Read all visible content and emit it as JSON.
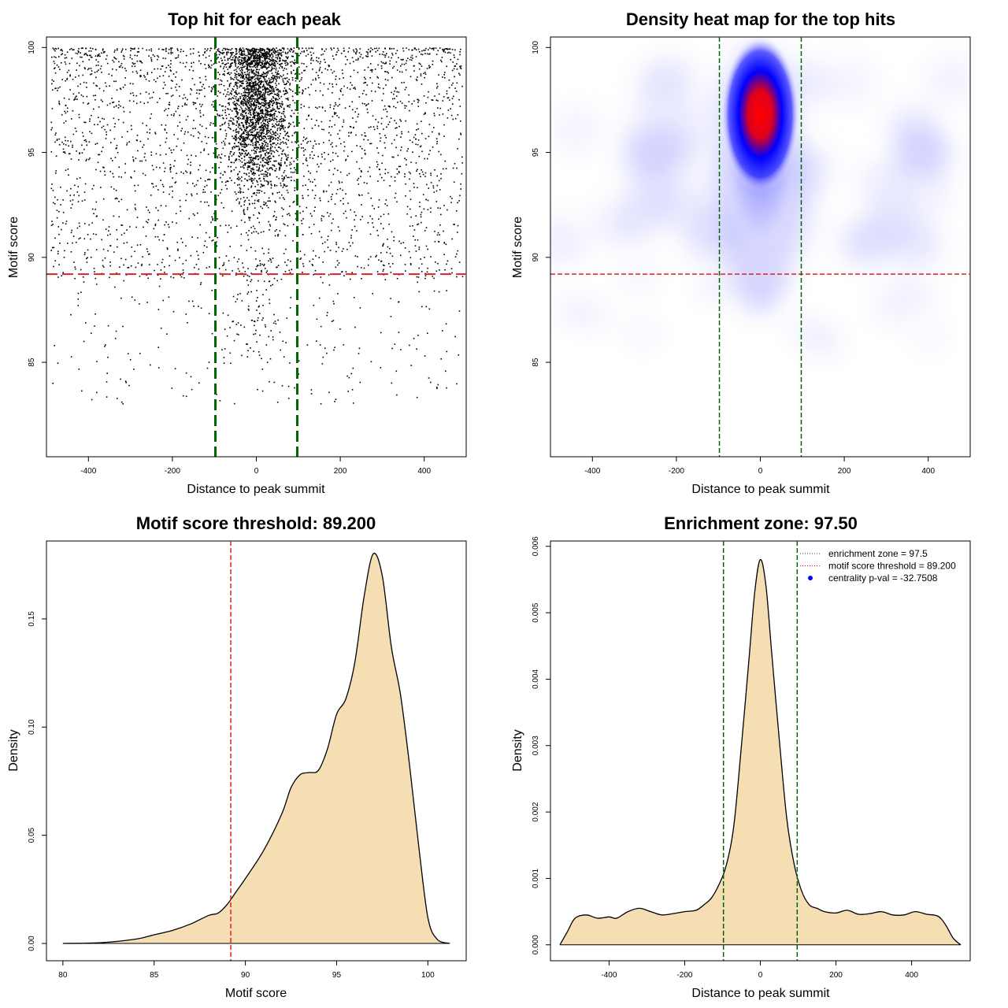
{
  "chart_data": [
    {
      "type": "scatter",
      "title": "Top hit for each peak",
      "xlabel": "Distance to peak summit",
      "ylabel": "Motif score",
      "xlim": [
        -500,
        500
      ],
      "ylim": [
        80.5,
        100.5
      ],
      "xticks": [
        -400,
        -200,
        0,
        200,
        400
      ],
      "yticks": [
        85,
        90,
        95,
        100
      ],
      "hlines": [
        89.2
      ],
      "vlines": [
        -97.5,
        97.5
      ],
      "points_summary": {
        "background": "points spread roughly uniformly over x in [-490, 490], mostly y 90-100, sparser 83-90",
        "central_cluster": "dense cluster centred at x=0 (sd about 35), y about 90-100, peak near 97"
      },
      "colors": {
        "points": "#000000",
        "threshold": "#dd2222",
        "zone": "#006600"
      }
    },
    {
      "type": "heatmap",
      "title": "Density heat map for the top hits",
      "xlabel": "Distance to peak summit",
      "ylabel": "Motif score",
      "xlim": [
        -500,
        500
      ],
      "ylim": [
        80.5,
        100.5
      ],
      "xticks": [
        -400,
        -200,
        0,
        200,
        400
      ],
      "yticks": [
        85,
        90,
        95,
        100
      ],
      "hlines": [
        89.2
      ],
      "vlines": [
        -97.5,
        97.5
      ],
      "hotspot": {
        "x": 0,
        "y": 97.2
      },
      "colors": {
        "low": "#ffffff",
        "mid": "#0000ff",
        "high": "#ff0000"
      }
    },
    {
      "type": "area",
      "title": "Motif score threshold: 89.200",
      "xlabel": "Motif score",
      "ylabel": "Density",
      "xlim": [
        79.1,
        102.1
      ],
      "ylim": [
        -0.008,
        0.186
      ],
      "xticks": [
        80,
        85,
        90,
        95,
        100
      ],
      "yticks": [
        0.0,
        0.05,
        0.1,
        0.15
      ],
      "ytick_labels": [
        "0.00",
        "0.05",
        "0.10",
        "0.15"
      ],
      "vlines": [
        89.2
      ],
      "x": [
        80,
        82,
        84,
        85,
        86,
        87,
        88,
        88.5,
        89,
        89.5,
        90,
        91,
        92,
        92.5,
        93,
        93.5,
        94,
        94.5,
        95,
        95.5,
        96,
        96.5,
        97,
        97.5,
        98,
        98.5,
        99,
        99.5,
        100,
        100.5,
        101.2
      ],
      "y": [
        0.0,
        0.0003,
        0.002,
        0.004,
        0.006,
        0.009,
        0.013,
        0.014,
        0.018,
        0.024,
        0.03,
        0.043,
        0.06,
        0.072,
        0.078,
        0.079,
        0.08,
        0.09,
        0.106,
        0.113,
        0.13,
        0.16,
        0.18,
        0.17,
        0.137,
        0.115,
        0.082,
        0.045,
        0.012,
        0.002,
        0.0
      ],
      "colors": {
        "fill": "#f5deb3",
        "line": "#000000",
        "threshold": "#dd2222"
      }
    },
    {
      "type": "area",
      "title": "Enrichment zone: 97.50",
      "xlabel": "Distance to peak summit",
      "ylabel": "Density",
      "xlim": [
        -555,
        555
      ],
      "ylim": [
        -0.00024,
        0.00608
      ],
      "xticks": [
        -400,
        -200,
        0,
        200,
        400
      ],
      "yticks": [
        0.0,
        0.001,
        0.002,
        0.003,
        0.004,
        0.005,
        0.006
      ],
      "ytick_labels": [
        "0.000",
        "0.001",
        "0.002",
        "0.003",
        "0.004",
        "0.005",
        "0.006"
      ],
      "vlines": [
        -97.5,
        97.5
      ],
      "x": [
        -530,
        -510,
        -490,
        -460,
        -430,
        -400,
        -380,
        -350,
        -320,
        -290,
        -260,
        -230,
        -200,
        -170,
        -150,
        -130,
        -110,
        -90,
        -70,
        -50,
        -30,
        -15,
        0,
        15,
        30,
        50,
        70,
        90,
        110,
        130,
        150,
        170,
        200,
        230,
        260,
        290,
        320,
        350,
        380,
        410,
        440,
        470,
        490,
        510,
        530
      ],
      "y": [
        0.0,
        0.0002,
        0.0004,
        0.00045,
        0.0004,
        0.00042,
        0.0004,
        0.0005,
        0.00055,
        0.0005,
        0.00045,
        0.00047,
        0.0005,
        0.00052,
        0.0006,
        0.0007,
        0.0009,
        0.0012,
        0.0018,
        0.003,
        0.0043,
        0.0053,
        0.0058,
        0.0054,
        0.0044,
        0.0031,
        0.0019,
        0.0012,
        0.0008,
        0.0006,
        0.00055,
        0.0005,
        0.00048,
        0.00052,
        0.00046,
        0.00047,
        0.0005,
        0.00045,
        0.00045,
        0.0005,
        0.00046,
        0.00043,
        0.0003,
        0.0001,
        0.0
      ],
      "legend": {
        "position": "top-right",
        "entries": [
          {
            "label": "enrichment zone = 97.5",
            "style": "dotted",
            "color": "#006600"
          },
          {
            "label": "motif score threshold = 89.200",
            "style": "dotted",
            "color": "#dd2222"
          },
          {
            "label": "centrality p-val = -32.7508",
            "style": "point",
            "color": "#0000ff"
          }
        ]
      },
      "colors": {
        "fill": "#f5deb3",
        "line": "#000000",
        "zone": "#006600"
      }
    }
  ]
}
